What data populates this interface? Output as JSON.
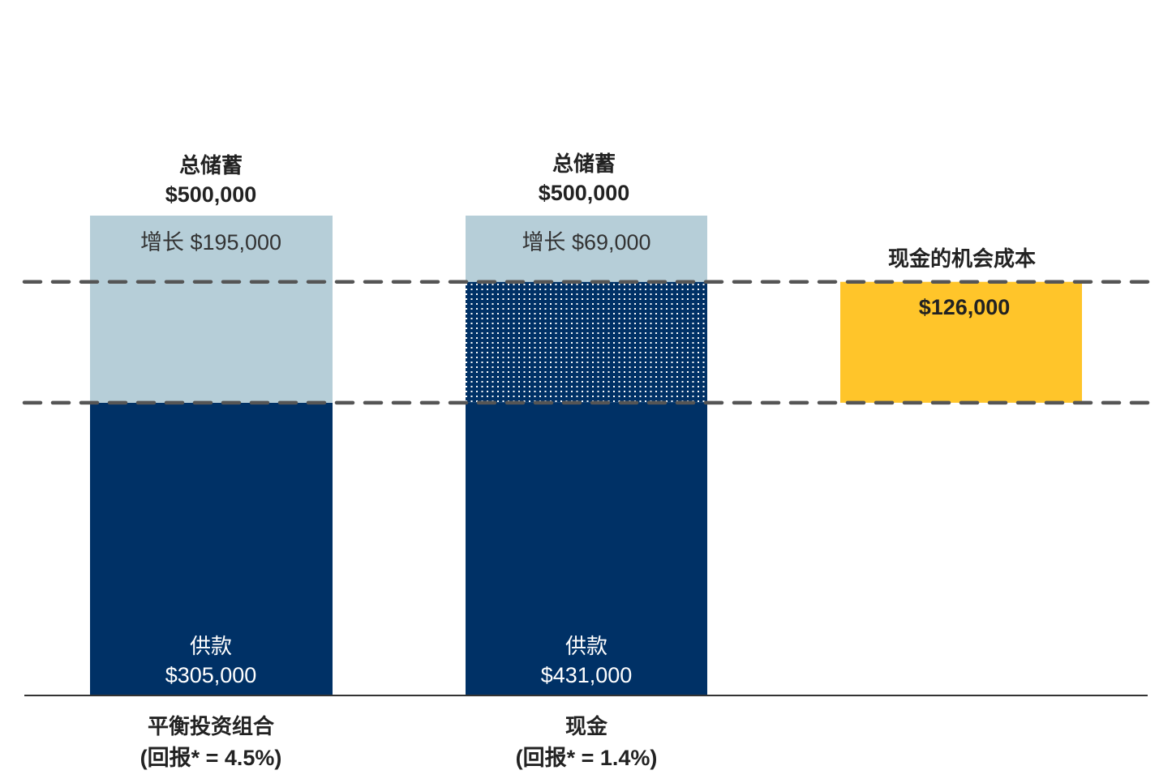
{
  "chart_data": {
    "type": "bar",
    "stacked": true,
    "ylim": [
      0,
      500000
    ],
    "grid": false,
    "categories": [
      {
        "name": "平衡投资组合",
        "sub": "(回报* = 4.5%)"
      },
      {
        "name": "现金",
        "sub": "(回报* = 1.4%)"
      },
      {
        "name": "",
        "sub": ""
      }
    ],
    "totals": [
      {
        "label": "总储蓄",
        "value_label": "$500,000",
        "value": 500000
      },
      {
        "label": "总储蓄",
        "value_label": "$500,000",
        "value": 500000
      }
    ],
    "segments": [
      {
        "bar": 0,
        "kind": "contributions",
        "from": 0,
        "to": 305000,
        "color": "#003166",
        "label": "供款",
        "value_label": "$305,000"
      },
      {
        "bar": 0,
        "kind": "growth",
        "from": 305000,
        "to": 500000,
        "color": "#b6ced8",
        "label": "增长 $195,000"
      },
      {
        "bar": 1,
        "kind": "contributions",
        "from": 0,
        "to": 305000,
        "color": "#003166",
        "label": "供款",
        "value_label": "$431,000"
      },
      {
        "bar": 1,
        "kind": "contributions-extra",
        "from": 305000,
        "to": 431000,
        "color": "#003166",
        "pattern": "white-dots"
      },
      {
        "bar": 1,
        "kind": "growth",
        "from": 431000,
        "to": 500000,
        "color": "#b6ced8",
        "label": "增长 $69,000"
      },
      {
        "bar": 2,
        "kind": "opportunity-cost",
        "from": 305000,
        "to": 431000,
        "color": "#ffc52a",
        "value_label": "$126,000"
      }
    ],
    "opportunity_cost": {
      "title": "现金的机会成本",
      "value_label": "$126,000",
      "value": 126000
    },
    "reference_lines": [
      305000,
      431000
    ],
    "reference_line_color": "#555555"
  }
}
